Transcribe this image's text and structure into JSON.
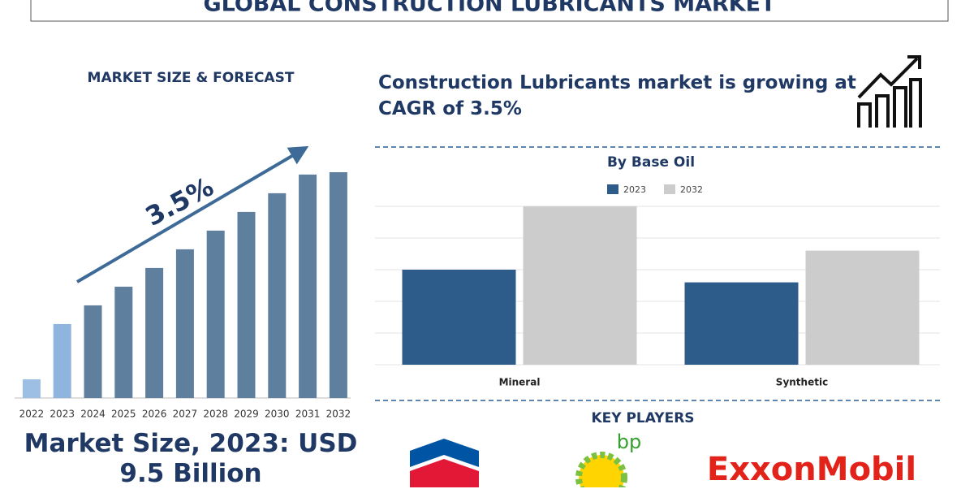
{
  "header": {
    "title": "GLOBAL CONSTRUCTION LUBRICANTS MARKET"
  },
  "forecast": {
    "heading": "MARKET SIZE & FORECAST",
    "cagr_label": "3.5%",
    "summary": "Market Size, 2023: USD 9.5 Billion"
  },
  "growth_note": "Construction Lubricants market is growing at CAGR of 3.5%",
  "key_players": {
    "heading": "KEY PLAYERS",
    "logos": [
      "bp",
      "ExxonMobil"
    ]
  },
  "chart_data": [
    {
      "type": "bar",
      "categories": [
        "2022",
        "2023",
        "2024",
        "2025",
        "2026",
        "2027",
        "2028",
        "2029",
        "2030",
        "2031",
        "2032"
      ],
      "values": [
        2.4,
        9.5,
        11.9,
        14.3,
        16.7,
        19.1,
        21.5,
        23.9,
        26.3,
        28.7,
        29.0
      ],
      "colors": [
        "#9dbfe3",
        "#8fb4de",
        "#5f7f9f",
        "#5f7f9f",
        "#5f7f9f",
        "#5f7f9f",
        "#5f7f9f",
        "#5f7f9f",
        "#5f7f9f",
        "#5f7f9f",
        "#5f7f9f"
      ]
    },
    {
      "type": "grouped-bar",
      "title": "By Base Oil",
      "categories": [
        "Mineral",
        "Synthetic"
      ],
      "series": [
        {
          "name": "2023",
          "color": "#2e5c8a",
          "values": [
            3.0,
            2.6
          ]
        },
        {
          "name": "2032",
          "color": "#cccccc",
          "values": [
            5.0,
            3.6
          ]
        }
      ],
      "ylim": [
        0,
        5
      ],
      "yticks": [
        0,
        1,
        2,
        3,
        4,
        5
      ],
      "grid": true
    }
  ]
}
